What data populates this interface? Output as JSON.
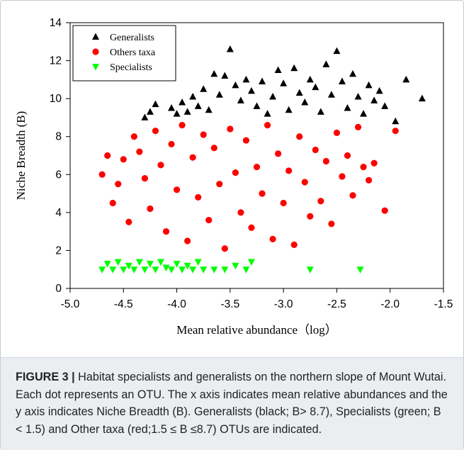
{
  "chart_data": {
    "type": "scatter",
    "xlabel": "Mean relative abundance（log）",
    "ylabel": "Niche Breadth (B)",
    "xlim": [
      -5.0,
      -1.5
    ],
    "ylim": [
      0,
      14
    ],
    "xticks": [
      "-5.0",
      "-4.5",
      "-4.0",
      "-3.5",
      "-3.0",
      "-2.5",
      "-2.0",
      "-1.5"
    ],
    "yticks": [
      "0",
      "2",
      "4",
      "6",
      "8",
      "10",
      "12",
      "14"
    ],
    "legend_position": "top-left",
    "series": [
      {
        "name": "Generalists",
        "marker": "triangle-up",
        "color": "#000000",
        "points": [
          [
            -4.3,
            9.0
          ],
          [
            -4.25,
            9.3
          ],
          [
            -4.2,
            9.7
          ],
          [
            -4.05,
            9.5
          ],
          [
            -4.0,
            9.2
          ],
          [
            -3.95,
            9.8
          ],
          [
            -3.9,
            9.3
          ],
          [
            -3.85,
            10.1
          ],
          [
            -3.8,
            9.6
          ],
          [
            -3.75,
            10.5
          ],
          [
            -3.7,
            9.4
          ],
          [
            -3.65,
            11.3
          ],
          [
            -3.6,
            10.2
          ],
          [
            -3.55,
            11.2
          ],
          [
            -3.5,
            12.6
          ],
          [
            -3.45,
            10.7
          ],
          [
            -3.4,
            9.9
          ],
          [
            -3.35,
            11.0
          ],
          [
            -3.3,
            10.4
          ],
          [
            -3.25,
            9.6
          ],
          [
            -3.2,
            10.9
          ],
          [
            -3.15,
            9.2
          ],
          [
            -3.1,
            10.1
          ],
          [
            -3.05,
            11.5
          ],
          [
            -3.0,
            10.8
          ],
          [
            -2.95,
            9.4
          ],
          [
            -2.9,
            11.6
          ],
          [
            -2.85,
            10.3
          ],
          [
            -2.8,
            9.8
          ],
          [
            -2.75,
            11.0
          ],
          [
            -2.7,
            10.6
          ],
          [
            -2.65,
            9.3
          ],
          [
            -2.6,
            11.8
          ],
          [
            -2.55,
            10.2
          ],
          [
            -2.5,
            12.5
          ],
          [
            -2.45,
            10.9
          ],
          [
            -2.4,
            9.5
          ],
          [
            -2.35,
            11.3
          ],
          [
            -2.3,
            10.1
          ],
          [
            -2.25,
            9.2
          ],
          [
            -2.2,
            10.7
          ],
          [
            -2.15,
            9.9
          ],
          [
            -2.1,
            10.4
          ],
          [
            -2.05,
            9.6
          ],
          [
            -1.95,
            8.8
          ],
          [
            -1.85,
            11.0
          ],
          [
            -1.7,
            10.0
          ]
        ]
      },
      {
        "name": "Others taxa",
        "marker": "circle",
        "color": "#ff0000",
        "points": [
          [
            -4.7,
            6.0
          ],
          [
            -4.65,
            7.0
          ],
          [
            -4.6,
            4.5
          ],
          [
            -4.55,
            5.5
          ],
          [
            -4.5,
            6.8
          ],
          [
            -4.45,
            3.5
          ],
          [
            -4.4,
            8.0
          ],
          [
            -4.35,
            7.2
          ],
          [
            -4.3,
            5.8
          ],
          [
            -4.25,
            4.2
          ],
          [
            -4.2,
            8.3
          ],
          [
            -4.15,
            6.5
          ],
          [
            -4.1,
            3.0
          ],
          [
            -4.05,
            7.6
          ],
          [
            -4.0,
            5.2
          ],
          [
            -3.95,
            8.6
          ],
          [
            -3.9,
            2.5
          ],
          [
            -3.85,
            6.9
          ],
          [
            -3.8,
            4.8
          ],
          [
            -3.75,
            8.1
          ],
          [
            -3.7,
            3.6
          ],
          [
            -3.65,
            7.4
          ],
          [
            -3.6,
            5.5
          ],
          [
            -3.55,
            2.1
          ],
          [
            -3.5,
            8.4
          ],
          [
            -3.45,
            6.1
          ],
          [
            -3.4,
            4.0
          ],
          [
            -3.35,
            7.8
          ],
          [
            -3.3,
            3.2
          ],
          [
            -3.25,
            6.4
          ],
          [
            -3.2,
            5.0
          ],
          [
            -3.15,
            8.6
          ],
          [
            -3.1,
            2.6
          ],
          [
            -3.05,
            7.1
          ],
          [
            -3.0,
            4.5
          ],
          [
            -2.95,
            6.2
          ],
          [
            -2.9,
            2.3
          ],
          [
            -2.85,
            8.0
          ],
          [
            -2.8,
            5.6
          ],
          [
            -2.75,
            3.8
          ],
          [
            -2.7,
            7.3
          ],
          [
            -2.65,
            4.6
          ],
          [
            -2.6,
            6.7
          ],
          [
            -2.55,
            3.4
          ],
          [
            -2.5,
            8.2
          ],
          [
            -2.45,
            5.9
          ],
          [
            -2.4,
            7.0
          ],
          [
            -2.35,
            4.9
          ],
          [
            -2.3,
            8.5
          ],
          [
            -2.25,
            6.4
          ],
          [
            -2.2,
            5.7
          ],
          [
            -2.15,
            6.6
          ],
          [
            -2.05,
            4.1
          ],
          [
            -1.95,
            8.3
          ]
        ]
      },
      {
        "name": "Specialists",
        "marker": "triangle-down",
        "color": "#00ff00",
        "points": [
          [
            -4.7,
            1.0
          ],
          [
            -4.65,
            1.3
          ],
          [
            -4.6,
            1.0
          ],
          [
            -4.55,
            1.4
          ],
          [
            -4.5,
            1.0
          ],
          [
            -4.45,
            1.2
          ],
          [
            -4.4,
            1.0
          ],
          [
            -4.35,
            1.4
          ],
          [
            -4.3,
            1.0
          ],
          [
            -4.25,
            1.3
          ],
          [
            -4.2,
            1.0
          ],
          [
            -4.15,
            1.4
          ],
          [
            -4.1,
            1.1
          ],
          [
            -4.05,
            1.0
          ],
          [
            -4.0,
            1.3
          ],
          [
            -3.95,
            1.0
          ],
          [
            -3.9,
            1.2
          ],
          [
            -3.85,
            1.0
          ],
          [
            -3.8,
            1.4
          ],
          [
            -3.75,
            1.0
          ],
          [
            -3.65,
            1.0
          ],
          [
            -3.55,
            1.0
          ],
          [
            -3.45,
            1.2
          ],
          [
            -3.35,
            1.0
          ],
          [
            -3.3,
            1.4
          ],
          [
            -2.75,
            1.0
          ],
          [
            -2.28,
            1.0
          ]
        ]
      }
    ]
  },
  "caption": {
    "label": "FIGURE 3 |",
    "text": " Habitat specialists and generalists on the northern slope of Mount Wutai. Each dot represents an OTU. The x axis indicates mean relative abundances and the y axis indicates Niche Breadth (B). Generalists (black; B> 8.7), Specialists (green; B < 1.5) and Other taxa (red;1.5 ≤ B ≤8.7) OTUs are indicated."
  }
}
